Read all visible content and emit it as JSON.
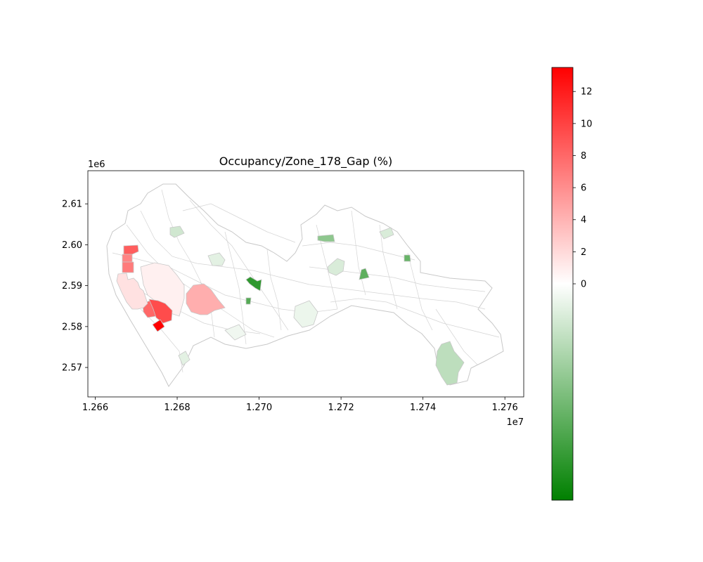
{
  "title": "Occupancy/Zone_178_Gap (%)",
  "x_axis": {
    "ticks": [
      12660000,
      12680000,
      12700000,
      12720000,
      12740000,
      12760000
    ],
    "tick_labels": [
      "1.266",
      "1.268",
      "1.270",
      "1.272",
      "1.274",
      "1.276"
    ],
    "offset_label": "1e7",
    "range": [
      12658200,
      12764600
    ]
  },
  "y_axis": {
    "ticks": [
      2570000,
      2580000,
      2590000,
      2600000,
      2610000
    ],
    "tick_labels": [
      "2.57",
      "2.58",
      "2.59",
      "2.60",
      "2.61"
    ],
    "offset_label": "1e6",
    "range": [
      2562800,
      2618100
    ]
  },
  "colorbar": {
    "range": [
      -13.5,
      13.5
    ],
    "ticks": [
      0,
      2,
      4,
      6,
      8,
      10,
      12
    ],
    "tick_labels": [
      "0",
      "2",
      "4",
      "6",
      "8",
      "10",
      "12"
    ],
    "colors": [
      "#008000",
      "#ffffff",
      "#ff0000"
    ]
  },
  "chart_data": {
    "type": "choropleth",
    "title": "Occupancy/Zone_178_Gap (%)",
    "value_label": "Gap (%)",
    "highlighted_zone": "178",
    "highlight_color": "#0000ff",
    "zones": [
      {
        "id": "178",
        "highlight": true,
        "value": 1.6,
        "x": 12667300,
        "y": 2588800
      },
      {
        "id": "n1",
        "value": 8.5,
        "x": 12667000,
        "y": 2599300
      },
      {
        "id": "n2",
        "value": 6.5,
        "x": 12666700,
        "y": 2596500
      },
      {
        "id": "n3",
        "value": 7.0,
        "x": 12666600,
        "y": 2594000
      },
      {
        "id": "n4",
        "value": 8.0,
        "x": 12667600,
        "y": 2583000
      },
      {
        "id": "n5",
        "value": 9.5,
        "x": 12668100,
        "y": 2584300
      },
      {
        "id": "n6",
        "value": 13.5,
        "x": 12667600,
        "y": 2580400
      },
      {
        "id": "n7",
        "value": 4.3,
        "x": 12668700,
        "y": 2587200
      },
      {
        "id": "n8",
        "value": 0.8,
        "x": 12667900,
        "y": 2588900
      },
      {
        "id": "g1",
        "value": -11.0,
        "x": 12669900,
        "y": 2590500
      },
      {
        "id": "g2",
        "value": -6.0,
        "x": 12671750,
        "y": 2599500
      },
      {
        "id": "g3",
        "value": -8.5,
        "x": 12672600,
        "y": 2593800
      },
      {
        "id": "g4",
        "value": -8.0,
        "x": 12673600,
        "y": 2596200
      },
      {
        "id": "g5",
        "value": -3.5,
        "x": 12674600,
        "y": 2573500
      },
      {
        "id": "g6",
        "value": -2.0,
        "x": 12671800,
        "y": 2595000
      },
      {
        "id": "g7",
        "value": -2.5,
        "x": 12668500,
        "y": 2600400
      },
      {
        "id": "g8",
        "value": -2.0,
        "x": 12673000,
        "y": 2600800
      },
      {
        "id": "g9",
        "value": -1.5,
        "x": 12669000,
        "y": 2596200
      },
      {
        "id": "g10",
        "value": -1.0,
        "x": 12671200,
        "y": 2582500
      },
      {
        "id": "g11",
        "value": -9.0,
        "x": 12669700,
        "y": 2586000
      },
      {
        "id": "g12",
        "value": -1.5,
        "x": 12668100,
        "y": 2578000
      },
      {
        "id": "g13",
        "value": -0.8,
        "x": 12670500,
        "y": 2584500
      }
    ]
  }
}
